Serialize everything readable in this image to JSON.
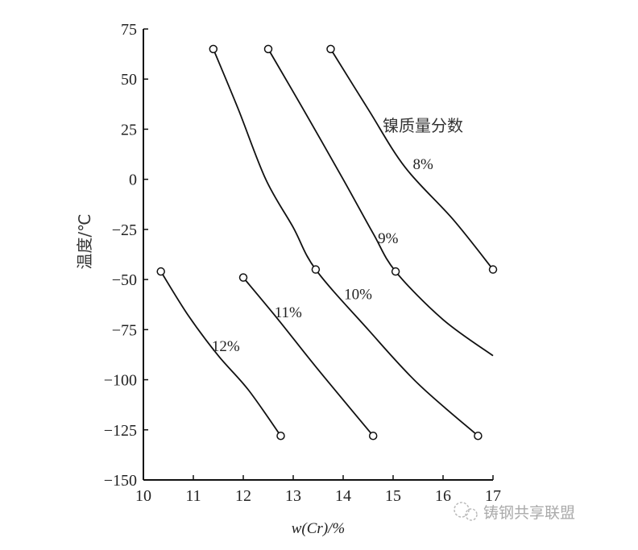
{
  "chart_data": {
    "type": "line",
    "title": "",
    "xlabel": "w(Cr)/%",
    "ylabel": "温度/℃",
    "xlim": [
      10,
      17
    ],
    "ylim": [
      -150,
      75
    ],
    "xticks": [
      10,
      11,
      12,
      13,
      14,
      15,
      16,
      17
    ],
    "yticks": [
      75,
      50,
      25,
      0,
      -25,
      -50,
      -75,
      -100,
      -125,
      -150
    ],
    "grid": false,
    "legend_title": "镍质量分数",
    "series": [
      {
        "name": "8%",
        "label_pos": [
          15.6,
          8
        ],
        "x": [
          13.75,
          14.5,
          15.24,
          16.2,
          17.0
        ],
        "y": [
          65,
          35,
          6,
          -20,
          -45
        ],
        "markers": [
          [
            13.75,
            65
          ],
          [
            17.0,
            -45
          ]
        ]
      },
      {
        "name": "9%",
        "label_pos": [
          14.9,
          -29
        ],
        "x": [
          12.5,
          13.2,
          14.0,
          14.6,
          15.05,
          16.0,
          17.0
        ],
        "y": [
          65,
          35,
          0,
          -27,
          -46,
          -70,
          -88
        ],
        "markers": [
          [
            12.5,
            65
          ],
          [
            15.05,
            -46
          ]
        ]
      },
      {
        "name": "10%",
        "label_pos": [
          14.3,
          -57
        ],
        "x": [
          11.4,
          11.9,
          12.45,
          13.0,
          13.45,
          14.5,
          15.5,
          16.7
        ],
        "y": [
          65,
          35,
          0,
          -24,
          -45,
          -75,
          -102,
          -128
        ],
        "markers": [
          [
            11.4,
            65
          ],
          [
            13.45,
            -45
          ],
          [
            16.7,
            -128
          ]
        ]
      },
      {
        "name": "11%",
        "label_pos": [
          12.9,
          -66
        ],
        "x": [
          12.0,
          12.7,
          13.5,
          14.6
        ],
        "y": [
          -49,
          -70,
          -95,
          -128
        ],
        "markers": [
          [
            12.0,
            -49
          ],
          [
            14.6,
            -128
          ]
        ]
      },
      {
        "name": "12%",
        "label_pos": [
          11.65,
          -83
        ],
        "x": [
          10.35,
          10.9,
          11.5,
          12.1,
          12.75
        ],
        "y": [
          -46,
          -68,
          -88,
          -105,
          -128
        ],
        "markers": [
          [
            10.35,
            -46
          ],
          [
            12.75,
            -128
          ]
        ]
      }
    ]
  },
  "watermark": "铸钢共享联盟",
  "watermark_icon": "wechat-icon"
}
